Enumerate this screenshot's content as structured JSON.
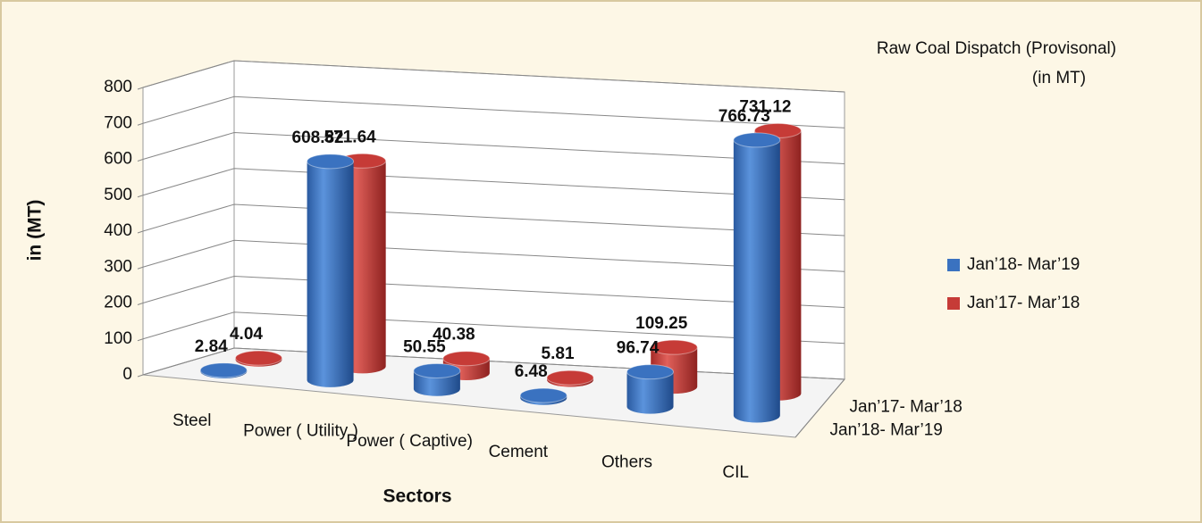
{
  "chart_data": {
    "type": "bar",
    "title": "Raw Coal Dispatch (Provisonal)",
    "subtitle": "(in MT)",
    "xlabel": "Sectors",
    "ylabel": "in (MT)",
    "categories": [
      "Steel",
      "Power ( Utility )",
      "Power ( Captive)",
      "Cement",
      "Others",
      "CIL"
    ],
    "series": [
      {
        "name": "Jan’18- Mar’19",
        "color": "#3a72c0",
        "values": [
          2.84,
          608.82,
          50.55,
          6.48,
          96.74,
          766.73
        ]
      },
      {
        "name": "Jan’17- Mar’18",
        "color": "#c63b37",
        "values": [
          4.04,
          571.64,
          40.38,
          5.81,
          109.25,
          731.12
        ]
      }
    ],
    "ylim": [
      0,
      800
    ],
    "yticks": [
      0,
      100,
      200,
      300,
      400,
      500,
      600,
      700,
      800
    ],
    "grid": true,
    "legend": "right"
  }
}
